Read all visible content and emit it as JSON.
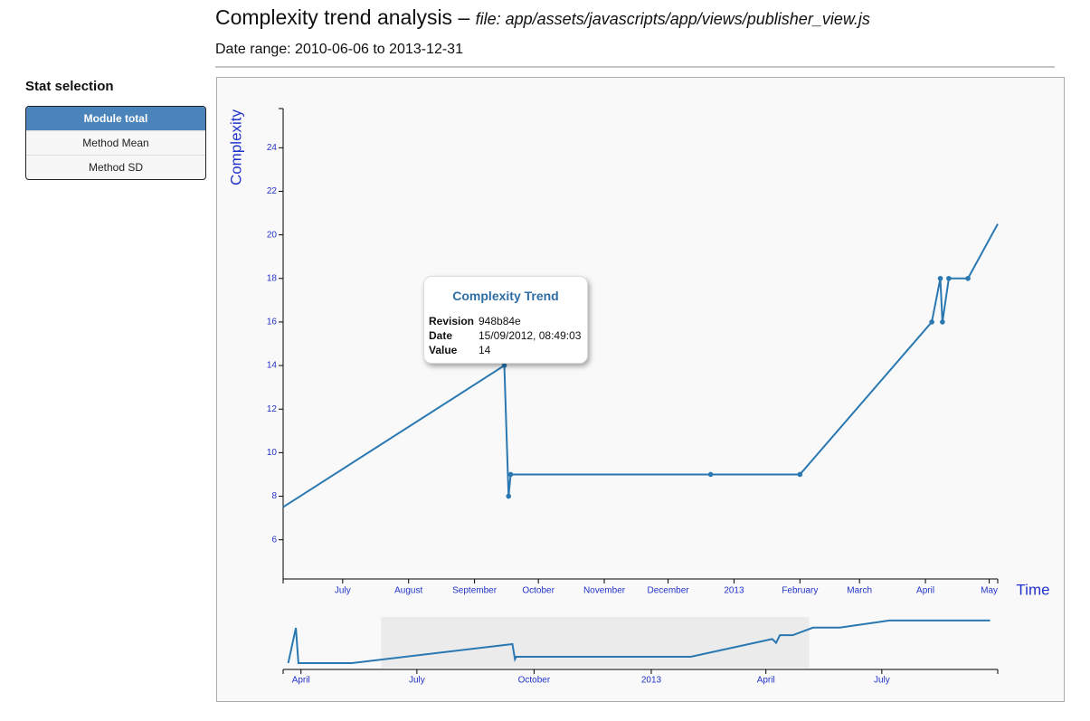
{
  "header": {
    "title": "Complexity trend analysis –",
    "file": "file: app/assets/javascripts/app/views/publisher_view.js",
    "date_range": "Date range: 2010-06-06 to 2013-12-31"
  },
  "sidebar": {
    "heading": "Stat selection",
    "options": [
      "Module total",
      "Method Mean",
      "Method SD"
    ],
    "selected": 0
  },
  "chart_data": {
    "type": "line",
    "y_label": "Complexity",
    "x_label": "Time",
    "color": "#2a78b2",
    "x": [
      "2012-06-03",
      "2012-09-15",
      "2012-09-17",
      "2012-09-18",
      "2012-12-21",
      "2013-02-01",
      "2013-04-04",
      "2013-04-08",
      "2013-04-09",
      "2013-04-12",
      "2013-04-21",
      "2013-05-05"
    ],
    "values": [
      7.5,
      14,
      8,
      9,
      9,
      9,
      16,
      18,
      16,
      18,
      18,
      20.5
    ],
    "xlim": [
      "2012-06-03",
      "2013-05-05"
    ],
    "xticks": [
      {
        "value": "2012-07-01",
        "label": "July"
      },
      {
        "value": "2012-08-01",
        "label": "August"
      },
      {
        "value": "2012-09-01",
        "label": "September"
      },
      {
        "value": "2012-10-01",
        "label": "October"
      },
      {
        "value": "2012-11-01",
        "label": "November"
      },
      {
        "value": "2012-12-01",
        "label": "December"
      },
      {
        "value": "2013-01-01",
        "label": "2013"
      },
      {
        "value": "2013-02-01",
        "label": "February"
      },
      {
        "value": "2013-03-01",
        "label": "March"
      },
      {
        "value": "2013-04-01",
        "label": "April"
      },
      {
        "value": "2013-05-01",
        "label": "May"
      }
    ],
    "ylim": [
      4.2,
      25.8
    ],
    "yticks": [
      6,
      8,
      10,
      12,
      14,
      16,
      18,
      20,
      22,
      24
    ],
    "tooltip": {
      "title": "Complexity Trend",
      "rows": [
        [
          "Revision",
          "948b84e"
        ],
        [
          "Date",
          "15/09/2012, 08:49:03"
        ],
        [
          "Value",
          14
        ]
      ]
    },
    "context": {
      "x": [
        "2012-03-22",
        "2012-03-28",
        "2012-03-30",
        "2012-05-11",
        "2012-09-14",
        "2012-09-16",
        "2012-09-17",
        "2013-02-01",
        "2013-04-06",
        "2013-04-09",
        "2013-04-12",
        "2013-04-22",
        "2013-05-08",
        "2013-05-29",
        "2013-07-07",
        "2013-09-24"
      ],
      "values": [
        6.5,
        20.4,
        6.5,
        6.5,
        14,
        8,
        9,
        9,
        16,
        14.5,
        17.5,
        17.5,
        20.5,
        20.5,
        23.3,
        23.3
      ],
      "xlim": [
        "2012-03-18",
        "2013-09-30"
      ],
      "ylim": [
        4.7,
        24.7
      ],
      "xticks": [
        {
          "value": "2012-04-01",
          "label": "April"
        },
        {
          "value": "2012-07-01",
          "label": "July"
        },
        {
          "value": "2012-10-01",
          "label": "October"
        },
        {
          "value": "2013-01-01",
          "label": "2013"
        },
        {
          "value": "2013-04-01",
          "label": "April"
        },
        {
          "value": "2013-07-01",
          "label": "July"
        }
      ]
    }
  }
}
